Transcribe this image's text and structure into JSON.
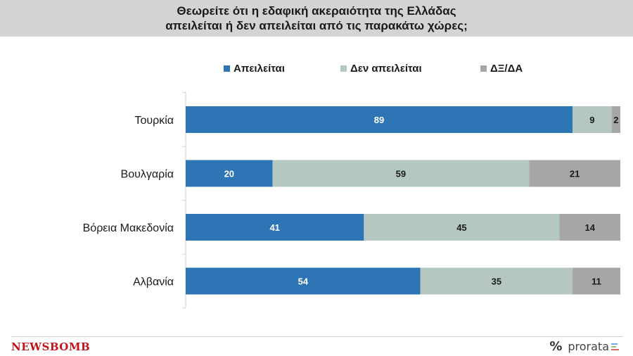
{
  "header": {
    "title_line1": "Θεωρείτε ότι η εδαφική ακεραιότητα της Ελλάδας",
    "title_line2": "απειλείται ή δεν απειλείται από τις παρακάτω χώρες;"
  },
  "colors": {
    "threatened": "#2e75b6",
    "not_threatened": "#b4c7c0",
    "dk_na": "#a6a6a6"
  },
  "chart_data": {
    "type": "bar",
    "orientation": "horizontal",
    "stacked": true,
    "title": "Θεωρείτε ότι η εδαφική ακεραιότητα της Ελλάδας απειλείται ή δεν απειλείται από τις παρακάτω χώρες;",
    "categories": [
      "Τουρκία",
      "Βουλγαρία",
      "Βόρεια Μακεδονία",
      "Αλβανία"
    ],
    "series": [
      {
        "name": "Απειλείται",
        "values": [
          89,
          20,
          41,
          54
        ]
      },
      {
        "name": "Δεν απειλείται",
        "values": [
          9,
          59,
          45,
          35
        ]
      },
      {
        "name": "ΔΞ/ΔΑ",
        "values": [
          2,
          21,
          14,
          11
        ]
      }
    ],
    "xlim": [
      0,
      100
    ],
    "legend": "top",
    "grid": false
  },
  "footer": {
    "brand_left": "NEWSBOMB",
    "brand_right_symbol": "%",
    "brand_right_name": "prorata"
  }
}
